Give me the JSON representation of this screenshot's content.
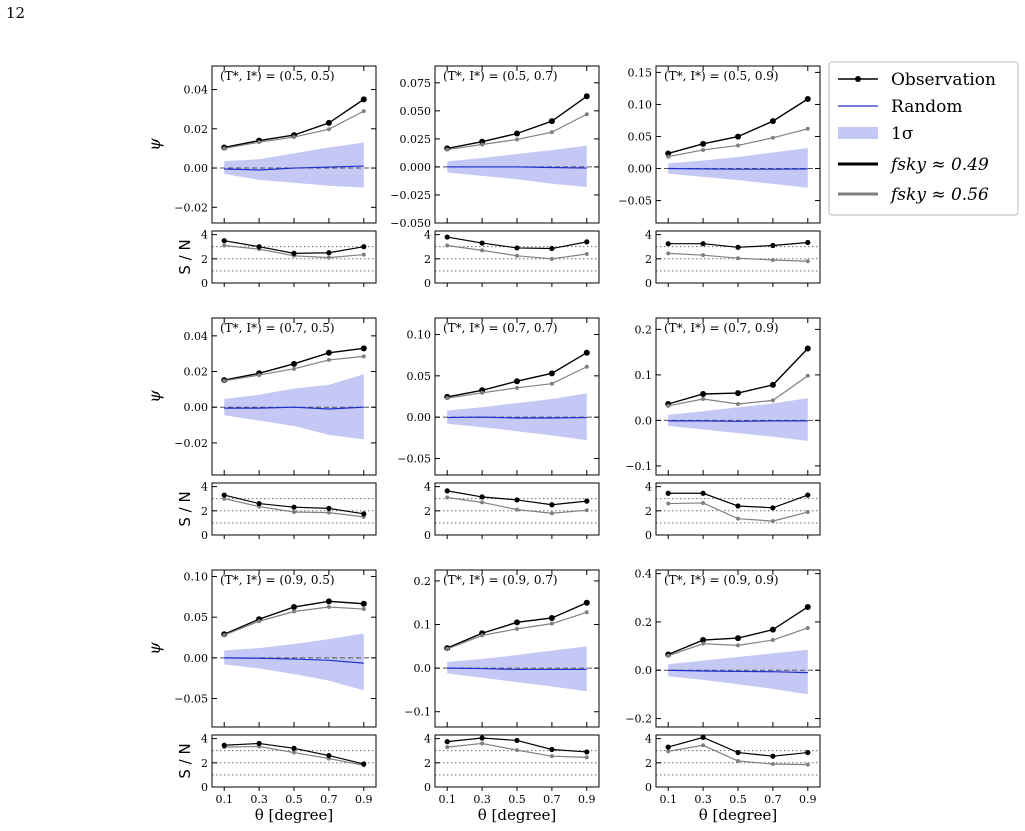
{
  "page_number": "12",
  "labels": {
    "psi_ylabel": "ψ",
    "sn_ylabel": "S / N",
    "x_label": "θ [degree]"
  },
  "legend": {
    "observation": "Observation",
    "random": "Random",
    "sigma": "1σ",
    "fsky1": "fsky ≈ 0.49",
    "fsky2": "fsky ≈ 0.56"
  },
  "colors": {
    "observation": "#000000",
    "fsky2": "#808080",
    "random": "#1f2fd0",
    "band": "#c5c8f5"
  },
  "chart_data": [
    {
      "type": "line",
      "title": "(T*, I*) = (0.5, 0.5)",
      "x": [
        0.1,
        0.3,
        0.5,
        0.7,
        0.9
      ],
      "ylim": [
        -0.028,
        0.052
      ],
      "yticks": [
        -0.02,
        0.0,
        0.02,
        0.04
      ],
      "ytick_labels": [
        "−0.02",
        "0.00",
        "0.02",
        "0.04"
      ],
      "series": [
        {
          "name": "Observation",
          "values": [
            0.0105,
            0.014,
            0.0168,
            0.023,
            0.035
          ]
        },
        {
          "name": "fsky ≈ 0.56",
          "values": [
            0.01,
            0.0132,
            0.0158,
            0.0198,
            0.029
          ]
        },
        {
          "name": "Random",
          "values": [
            -0.0005,
            -0.001,
            0.0,
            0.0005,
            0.001
          ]
        }
      ],
      "band": {
        "lower": [
          -0.003,
          -0.006,
          -0.0075,
          -0.009,
          -0.01
        ],
        "upper": [
          0.0035,
          0.0045,
          0.0075,
          0.0105,
          0.013
        ]
      },
      "sn": {
        "ylim": [
          0,
          4.3
        ],
        "yticks": [
          0,
          2,
          4
        ],
        "observation": [
          3.5,
          3.0,
          2.45,
          2.5,
          3.0
        ],
        "fsky2": [
          3.1,
          2.8,
          2.25,
          2.1,
          2.35
        ]
      }
    },
    {
      "type": "line",
      "title": "(T*, I*) = (0.5, 0.7)",
      "x": [
        0.1,
        0.3,
        0.5,
        0.7,
        0.9
      ],
      "ylim": [
        -0.05,
        0.09
      ],
      "yticks": [
        -0.05,
        -0.025,
        0.0,
        0.025,
        0.05,
        0.075
      ],
      "ytick_labels": [
        "−0.050",
        "−0.025",
        "0.000",
        "0.025",
        "0.050",
        "0.075"
      ],
      "series": [
        {
          "name": "Observation",
          "values": [
            0.0165,
            0.0225,
            0.0298,
            0.0408,
            0.063
          ]
        },
        {
          "name": "fsky ≈ 0.56",
          "values": [
            0.0155,
            0.02,
            0.0245,
            0.031,
            0.047
          ]
        },
        {
          "name": "Random",
          "values": [
            0.0,
            0.0,
            0.0,
            -0.0005,
            -0.001
          ]
        }
      ],
      "band": {
        "lower": [
          -0.005,
          -0.008,
          -0.011,
          -0.015,
          -0.018
        ],
        "upper": [
          0.005,
          0.008,
          0.0115,
          0.015,
          0.019
        ]
      },
      "sn": {
        "ylim": [
          0,
          4.3
        ],
        "yticks": [
          0,
          2,
          4
        ],
        "observation": [
          3.8,
          3.3,
          2.9,
          2.85,
          3.4
        ],
        "fsky2": [
          3.1,
          2.7,
          2.25,
          2.0,
          2.4
        ]
      }
    },
    {
      "type": "line",
      "title": "(T*, I*) = (0.5, 0.9)",
      "x": [
        0.1,
        0.3,
        0.5,
        0.7,
        0.9
      ],
      "ylim": [
        -0.085,
        0.16
      ],
      "yticks": [
        -0.05,
        0.0,
        0.05,
        0.1,
        0.15
      ],
      "ytick_labels": [
        "−0.05",
        "0.00",
        "0.05",
        "0.10",
        "0.15"
      ],
      "series": [
        {
          "name": "Observation",
          "values": [
            0.0235,
            0.0385,
            0.0498,
            0.074,
            0.1085
          ]
        },
        {
          "name": "fsky ≈ 0.56",
          "values": [
            0.0185,
            0.029,
            0.036,
            0.048,
            0.062
          ]
        },
        {
          "name": "Random",
          "values": [
            0.0,
            -0.0005,
            -0.001,
            -0.001,
            -0.0005
          ]
        }
      ],
      "band": {
        "lower": [
          -0.008,
          -0.013,
          -0.018,
          -0.024,
          -0.03
        ],
        "upper": [
          0.008,
          0.0125,
          0.018,
          0.025,
          0.032
        ]
      },
      "sn": {
        "ylim": [
          0,
          4.3
        ],
        "yticks": [
          0,
          2,
          4
        ],
        "observation": [
          3.25,
          3.25,
          2.95,
          3.1,
          3.35
        ],
        "fsky2": [
          2.45,
          2.3,
          2.05,
          1.9,
          1.8
        ]
      }
    },
    {
      "type": "line",
      "title": "(T*, I*) = (0.7, 0.5)",
      "x": [
        0.1,
        0.3,
        0.5,
        0.7,
        0.9
      ],
      "ylim": [
        -0.038,
        0.05
      ],
      "yticks": [
        -0.02,
        0.0,
        0.02,
        0.04
      ],
      "ytick_labels": [
        "−0.02",
        "0.00",
        "0.02",
        "0.04"
      ],
      "series": [
        {
          "name": "Observation",
          "values": [
            0.0152,
            0.019,
            0.0243,
            0.0305,
            0.033
          ]
        },
        {
          "name": "fsky ≈ 0.56",
          "values": [
            0.0148,
            0.018,
            0.0215,
            0.0265,
            0.0285
          ]
        },
        {
          "name": "Random",
          "values": [
            -0.0005,
            -0.0005,
            0.0,
            -0.001,
            0.0
          ]
        }
      ],
      "band": {
        "lower": [
          -0.0045,
          -0.0075,
          -0.0105,
          -0.0155,
          -0.018
        ],
        "upper": [
          0.0045,
          0.007,
          0.0105,
          0.0125,
          0.0185
        ]
      },
      "sn": {
        "ylim": [
          0,
          4.3
        ],
        "yticks": [
          0,
          2,
          4
        ],
        "observation": [
          3.3,
          2.6,
          2.3,
          2.2,
          1.75
        ],
        "fsky2": [
          3.0,
          2.35,
          1.9,
          1.85,
          1.5
        ]
      }
    },
    {
      "type": "line",
      "title": "(T*, I*) = (0.7, 0.7)",
      "x": [
        0.1,
        0.3,
        0.5,
        0.7,
        0.9
      ],
      "ylim": [
        -0.07,
        0.12
      ],
      "yticks": [
        -0.05,
        0.0,
        0.05,
        0.1
      ],
      "ytick_labels": [
        "−0.05",
        "0.00",
        "0.05",
        "0.10"
      ],
      "series": [
        {
          "name": "Observation",
          "values": [
            0.0245,
            0.0325,
            0.0435,
            0.053,
            0.078
          ]
        },
        {
          "name": "fsky ≈ 0.56",
          "values": [
            0.023,
            0.0295,
            0.0355,
            0.0405,
            0.061
          ]
        },
        {
          "name": "Random",
          "values": [
            -0.0005,
            0.0,
            -0.001,
            -0.001,
            -0.0005
          ]
        }
      ],
      "band": {
        "lower": [
          -0.008,
          -0.012,
          -0.017,
          -0.022,
          -0.028
        ],
        "upper": [
          0.008,
          0.012,
          0.017,
          0.022,
          0.029
        ]
      },
      "sn": {
        "ylim": [
          0,
          4.3
        ],
        "yticks": [
          0,
          2,
          4
        ],
        "observation": [
          3.65,
          3.15,
          2.9,
          2.5,
          2.8
        ],
        "fsky2": [
          3.1,
          2.7,
          2.1,
          1.8,
          2.05
        ]
      }
    },
    {
      "type": "line",
      "title": "(T*, I*) = (0.7, 0.9)",
      "x": [
        0.1,
        0.3,
        0.5,
        0.7,
        0.9
      ],
      "ylim": [
        -0.12,
        0.225
      ],
      "yticks": [
        -0.1,
        0.0,
        0.1,
        0.2
      ],
      "ytick_labels": [
        "−0.1",
        "0.0",
        "0.1",
        "0.2"
      ],
      "series": [
        {
          "name": "Observation",
          "values": [
            0.036,
            0.058,
            0.06,
            0.078,
            0.158
          ]
        },
        {
          "name": "fsky ≈ 0.56",
          "values": [
            0.032,
            0.047,
            0.036,
            0.044,
            0.098
          ]
        },
        {
          "name": "Random",
          "values": [
            -0.001,
            -0.001,
            -0.002,
            -0.001,
            -0.001
          ]
        }
      ],
      "band": {
        "lower": [
          -0.012,
          -0.02,
          -0.028,
          -0.036,
          -0.045
        ],
        "upper": [
          0.012,
          0.02,
          0.029,
          0.037,
          0.049
        ]
      },
      "sn": {
        "ylim": [
          0,
          4.3
        ],
        "yticks": [
          0,
          2,
          4
        ],
        "observation": [
          3.45,
          3.45,
          2.4,
          2.25,
          3.3
        ],
        "fsky2": [
          2.6,
          2.65,
          1.35,
          1.15,
          1.9
        ]
      }
    },
    {
      "type": "line",
      "title": "(T*, I*) = (0.9, 0.5)",
      "x": [
        0.1,
        0.3,
        0.5,
        0.7,
        0.9
      ],
      "ylim": [
        -0.085,
        0.108
      ],
      "yticks": [
        -0.05,
        0.0,
        0.05,
        0.1
      ],
      "ytick_labels": [
        "−0.05",
        "0.00",
        "0.05",
        "0.10"
      ],
      "series": [
        {
          "name": "Observation",
          "values": [
            0.029,
            0.0475,
            0.0625,
            0.0695,
            0.0665
          ]
        },
        {
          "name": "fsky ≈ 0.56",
          "values": [
            0.028,
            0.045,
            0.057,
            0.0625,
            0.06
          ]
        },
        {
          "name": "Random",
          "values": [
            0.0,
            -0.0005,
            -0.0015,
            -0.003,
            -0.0065
          ]
        }
      ],
      "band": {
        "lower": [
          -0.008,
          -0.013,
          -0.02,
          -0.028,
          -0.04
        ],
        "upper": [
          0.009,
          0.012,
          0.017,
          0.023,
          0.03
        ]
      },
      "sn": {
        "ylim": [
          0,
          4.3
        ],
        "yticks": [
          0,
          2,
          4
        ],
        "observation": [
          3.45,
          3.6,
          3.2,
          2.6,
          1.9
        ],
        "fsky2": [
          3.3,
          3.35,
          2.85,
          2.35,
          1.8
        ]
      }
    },
    {
      "type": "line",
      "title": "(T*, I*) = (0.9, 0.7)",
      "x": [
        0.1,
        0.3,
        0.5,
        0.7,
        0.9
      ],
      "ylim": [
        -0.135,
        0.225
      ],
      "yticks": [
        -0.1,
        0.0,
        0.1,
        0.2
      ],
      "ytick_labels": [
        "−0.1",
        "0.0",
        "0.1",
        "0.2"
      ],
      "series": [
        {
          "name": "Observation",
          "values": [
            0.046,
            0.08,
            0.105,
            0.115,
            0.15
          ]
        },
        {
          "name": "fsky ≈ 0.56",
          "values": [
            0.044,
            0.075,
            0.09,
            0.102,
            0.128
          ]
        },
        {
          "name": "Random",
          "values": [
            0.0,
            -0.001,
            -0.003,
            -0.003,
            -0.003
          ]
        }
      ],
      "band": {
        "lower": [
          -0.012,
          -0.022,
          -0.032,
          -0.042,
          -0.053
        ],
        "upper": [
          0.014,
          0.021,
          0.03,
          0.04,
          0.05
        ]
      },
      "sn": {
        "ylim": [
          0,
          4.3
        ],
        "yticks": [
          0,
          2,
          4
        ],
        "observation": [
          3.75,
          4.05,
          3.85,
          3.1,
          2.9
        ],
        "fsky2": [
          3.3,
          3.6,
          3.05,
          2.55,
          2.45
        ]
      }
    },
    {
      "type": "line",
      "title": "(T*, I*) = (0.9, 0.9)",
      "x": [
        0.1,
        0.3,
        0.5,
        0.7,
        0.9
      ],
      "ylim": [
        -0.235,
        0.415
      ],
      "yticks": [
        -0.2,
        0.0,
        0.2,
        0.4
      ],
      "ytick_labels": [
        "−0.2",
        "0.0",
        "0.2",
        "0.4"
      ],
      "series": [
        {
          "name": "Observation",
          "values": [
            0.065,
            0.125,
            0.133,
            0.168,
            0.262
          ]
        },
        {
          "name": "fsky ≈ 0.56",
          "values": [
            0.06,
            0.11,
            0.103,
            0.125,
            0.175
          ]
        },
        {
          "name": "Random",
          "values": [
            0.0,
            -0.003,
            -0.005,
            -0.006,
            -0.01
          ]
        }
      ],
      "band": {
        "lower": [
          -0.025,
          -0.04,
          -0.058,
          -0.077,
          -0.1
        ],
        "upper": [
          0.025,
          0.04,
          0.055,
          0.07,
          0.085
        ]
      },
      "sn": {
        "ylim": [
          0,
          4.3
        ],
        "yticks": [
          0,
          2,
          4
        ],
        "observation": [
          3.3,
          4.1,
          2.85,
          2.55,
          2.85
        ],
        "fsky2": [
          2.95,
          3.45,
          2.15,
          1.9,
          1.85
        ]
      }
    }
  ]
}
